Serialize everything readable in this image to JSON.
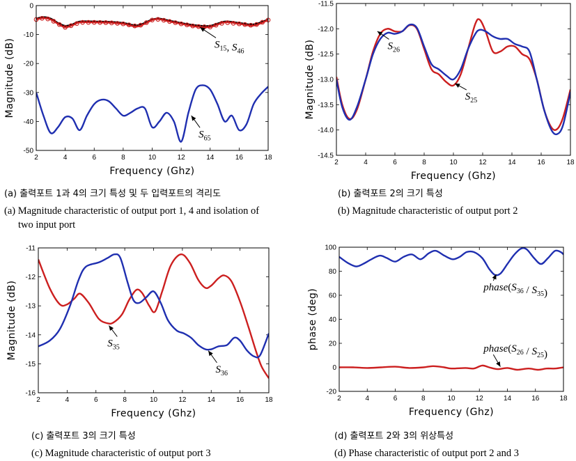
{
  "chart_data": [
    {
      "type": "line",
      "panel": "a",
      "xlabel": "Frequency (Ghz)",
      "ylabel": "Magnitude (dB)",
      "xlim": [
        2,
        18
      ],
      "ylim": [
        -50,
        0
      ],
      "xticks": [
        2,
        4,
        6,
        8,
        10,
        12,
        14,
        16,
        18
      ],
      "yticks": [
        0,
        -10,
        -20,
        -30,
        -40,
        -50
      ],
      "series": [
        {
          "name": "S15",
          "color": "#000000",
          "marker": "none",
          "x": [
            2,
            2.5,
            3,
            3.5,
            4,
            4.5,
            5,
            6,
            7,
            8,
            9,
            10,
            10.5,
            11,
            12,
            13,
            14,
            15,
            16,
            17,
            18
          ],
          "y": [
            -4.5,
            -4,
            -4.5,
            -6,
            -7,
            -6.5,
            -5.5,
            -5.5,
            -5.6,
            -6,
            -6.8,
            -4.8,
            -4.5,
            -5,
            -6,
            -6.8,
            -7,
            -5.5,
            -6,
            -6.5,
            -4.8
          ]
        },
        {
          "name": "S46",
          "color": "#cc1f1f",
          "marker": "circle",
          "x": [
            2,
            2.5,
            3,
            3.5,
            4,
            4.5,
            5,
            6,
            7,
            8,
            9,
            10,
            10.5,
            11,
            12,
            13,
            14,
            15,
            16,
            17,
            18
          ],
          "y": [
            -4.8,
            -4.3,
            -4.8,
            -6.3,
            -7.5,
            -6.8,
            -5.8,
            -5.8,
            -5.9,
            -6.3,
            -7.2,
            -5,
            -4.7,
            -5.3,
            -6.3,
            -7.2,
            -7.4,
            -5.8,
            -6.3,
            -6.9,
            -5
          ]
        },
        {
          "name": "S65",
          "color": "#1f2fb0",
          "marker": "none",
          "x": [
            2,
            2.5,
            3,
            3.5,
            4,
            4.5,
            5,
            5.5,
            6,
            6.5,
            7,
            7.5,
            8,
            8.5,
            9,
            9.5,
            10,
            10.5,
            11,
            11.5,
            12,
            12.5,
            13,
            13.5,
            14,
            14.5,
            15,
            15.5,
            16,
            16.5,
            17,
            17.5,
            18
          ],
          "y": [
            -30,
            -38,
            -44,
            -42,
            -38.5,
            -39,
            -43,
            -38,
            -34,
            -32.5,
            -33,
            -35.5,
            -38,
            -37,
            -35.5,
            -35.5,
            -42,
            -40,
            -37,
            -40,
            -47,
            -37,
            -29,
            -27.5,
            -29,
            -34,
            -40,
            -38,
            -43,
            -41,
            -34,
            -30.5,
            -28
          ]
        }
      ],
      "annotations": [
        {
          "base": "S",
          "sub": "15",
          "sep": ", ",
          "base2": "S",
          "sub2": "46",
          "x": 14.3,
          "y": -14.5,
          "arrow_to": [
            13.3,
            -7.5
          ]
        },
        {
          "base": "S",
          "sub": "65",
          "x": 13.2,
          "y": -45.5,
          "arrow_to": [
            12.7,
            -38
          ]
        }
      ]
    },
    {
      "type": "line",
      "panel": "b",
      "xlabel": "Frequency (Ghz)",
      "ylabel": "Magnitude (dB)",
      "xlim": [
        2,
        18
      ],
      "ylim": [
        -14.5,
        -11.5
      ],
      "xticks": [
        2,
        4,
        6,
        8,
        10,
        12,
        14,
        16,
        18
      ],
      "yticks": [
        "-11.5",
        "-12.0",
        "-12.5",
        "-13.0",
        "-13.5",
        "-14.0",
        "-14.5"
      ],
      "series": [
        {
          "name": "S25",
          "color": "#cc1f1f",
          "x": [
            2,
            2.4,
            2.9,
            3.4,
            4,
            4.5,
            5,
            5.5,
            6,
            6.5,
            7,
            7.5,
            8,
            8.5,
            9,
            9.5,
            10,
            10.5,
            11,
            11.5,
            11.8,
            12.2,
            12.7,
            13.2,
            13.7,
            14.2,
            14.7,
            15.2,
            15.7,
            16.2,
            16.7,
            17.1,
            17.5,
            18
          ],
          "y": [
            -12.95,
            -13.5,
            -13.78,
            -13.6,
            -13.0,
            -12.45,
            -12.1,
            -12.0,
            -12.05,
            -12.05,
            -11.93,
            -12.0,
            -12.4,
            -12.8,
            -12.9,
            -13.05,
            -13.12,
            -12.9,
            -12.4,
            -11.9,
            -11.82,
            -12.05,
            -12.45,
            -12.45,
            -12.35,
            -12.35,
            -12.5,
            -12.6,
            -13.0,
            -13.6,
            -13.95,
            -13.98,
            -13.75,
            -13.2
          ]
        },
        {
          "name": "S26",
          "color": "#1f2fb0",
          "x": [
            2,
            2.4,
            2.9,
            3.4,
            4,
            4.5,
            5,
            5.5,
            6,
            6.5,
            7,
            7.5,
            8,
            8.5,
            9,
            9.5,
            10,
            10.5,
            11,
            11.5,
            11.8,
            12.2,
            12.7,
            13.2,
            13.7,
            14.2,
            14.7,
            15.2,
            15.7,
            16.2,
            16.7,
            17.1,
            17.5,
            18
          ],
          "y": [
            -13.0,
            -13.55,
            -13.8,
            -13.55,
            -13.0,
            -12.5,
            -12.2,
            -12.08,
            -12.1,
            -12.05,
            -11.92,
            -11.98,
            -12.35,
            -12.7,
            -12.8,
            -12.92,
            -13.0,
            -12.8,
            -12.4,
            -12.1,
            -12.02,
            -12.05,
            -12.15,
            -12.2,
            -12.2,
            -12.3,
            -12.35,
            -12.45,
            -13.0,
            -13.6,
            -14.0,
            -14.08,
            -13.9,
            -13.25
          ]
        }
      ],
      "annotations": [
        {
          "base": "S",
          "sub": "26",
          "x": 5.5,
          "y": -12.4,
          "arrow_to": [
            4.8,
            -12.05
          ]
        },
        {
          "base": "S",
          "sub": "25",
          "x": 10.8,
          "y": -13.4,
          "arrow_to": [
            10.1,
            -13.08
          ]
        }
      ]
    },
    {
      "type": "line",
      "panel": "c",
      "xlabel": "Frequency (Ghz)",
      "ylabel": "Magnitude (dB)",
      "xlim": [
        2,
        18
      ],
      "ylim": [
        -16,
        -11
      ],
      "xticks": [
        2,
        4,
        6,
        8,
        10,
        12,
        14,
        16,
        18
      ],
      "yticks": [
        -11,
        -12,
        -13,
        -14,
        -15,
        -16
      ],
      "series": [
        {
          "name": "S35",
          "color": "#cc1f1f",
          "x": [
            2,
            2.8,
            3.5,
            4,
            4.5,
            4.9,
            5.5,
            6.2,
            6.8,
            7.2,
            7.8,
            8.3,
            8.8,
            9.2,
            9.7,
            10.1,
            10.6,
            11.2,
            11.9,
            12.5,
            13.1,
            13.6,
            14.0,
            14.5,
            14.9,
            15.4,
            16.0,
            16.6,
            17.1,
            17.5,
            18
          ],
          "y": [
            -11.4,
            -12.4,
            -12.95,
            -12.95,
            -12.75,
            -12.58,
            -12.9,
            -13.45,
            -13.6,
            -13.58,
            -13.3,
            -12.8,
            -12.45,
            -12.55,
            -13.0,
            -13.2,
            -12.5,
            -11.6,
            -11.22,
            -11.5,
            -12.1,
            -12.38,
            -12.3,
            -12.05,
            -11.95,
            -12.15,
            -12.85,
            -13.75,
            -14.55,
            -15.1,
            -15.5
          ]
        },
        {
          "name": "S36",
          "color": "#1f2fb0",
          "x": [
            2,
            2.8,
            3.5,
            4.2,
            4.8,
            5.3,
            6.2,
            6.8,
            7.3,
            7.7,
            8.2,
            8.6,
            9.0,
            9.5,
            10.0,
            10.5,
            11.0,
            11.6,
            12.1,
            12.6,
            13.1,
            13.6,
            14.0,
            14.5,
            15.1,
            15.6,
            16.0,
            16.5,
            17.0,
            17.4,
            18
          ],
          "y": [
            -14.4,
            -14.2,
            -13.8,
            -13.0,
            -12.1,
            -11.65,
            -11.5,
            -11.35,
            -11.22,
            -11.35,
            -12.2,
            -12.8,
            -12.9,
            -12.7,
            -12.5,
            -12.9,
            -13.5,
            -13.85,
            -13.95,
            -14.1,
            -14.35,
            -14.5,
            -14.5,
            -14.4,
            -14.35,
            -14.1,
            -14.2,
            -14.55,
            -14.75,
            -14.7,
            -13.95
          ]
        }
      ],
      "annotations": [
        {
          "base": "S",
          "sub": "35",
          "x": 6.8,
          "y": -14.4,
          "arrow_to": [
            6.9,
            -13.68
          ]
        },
        {
          "base": "S",
          "sub": "36",
          "x": 14.3,
          "y": -15.3,
          "arrow_to": [
            13.8,
            -14.55
          ]
        }
      ]
    },
    {
      "type": "line",
      "panel": "d",
      "xlabel": "Frequency (Ghz)",
      "ylabel": "phase (deg)",
      "xlim": [
        2,
        18
      ],
      "ylim": [
        -20,
        100
      ],
      "xticks": [
        2,
        4,
        6,
        8,
        10,
        12,
        14,
        16,
        18
      ],
      "yticks": [
        -20,
        0,
        20,
        40,
        60,
        80,
        100
      ],
      "series": [
        {
          "name": "phase(S36/S35)",
          "color": "#1f2fb0",
          "x": [
            2,
            2.6,
            3.2,
            3.7,
            4.3,
            4.9,
            5.4,
            6.0,
            6.6,
            7.2,
            7.8,
            8.4,
            8.9,
            9.5,
            10.1,
            10.6,
            11.1,
            11.6,
            12.2,
            12.7,
            13.1,
            13.5,
            14.0,
            14.5,
            15.0,
            15.4,
            15.9,
            16.4,
            16.9,
            17.4,
            17.8,
            18
          ],
          "y": [
            92,
            87,
            84,
            86,
            90,
            93,
            91,
            88,
            92,
            94,
            90,
            95,
            97,
            93,
            90,
            92,
            96,
            96,
            91,
            82,
            77,
            78,
            86,
            94,
            99,
            98,
            91,
            86,
            91,
            97,
            96,
            94
          ]
        },
        {
          "name": "phase(S26/S25)",
          "color": "#cc1f1f",
          "x": [
            2,
            3,
            4,
            5,
            6,
            7,
            8,
            8.7,
            9.5,
            10,
            11,
            11.6,
            12.2,
            12.7,
            13.3,
            14,
            14.7,
            15.5,
            16.2,
            16.8,
            17.4,
            18
          ],
          "y": [
            0,
            0,
            -0.5,
            0,
            0.5,
            -0.5,
            0,
            1,
            0,
            -1,
            -0.5,
            -1,
            1.5,
            0,
            -1.5,
            -0.5,
            -2,
            -1,
            -2,
            -1,
            -1,
            0
          ]
        }
      ],
      "annotations": [
        {
          "label": "phase",
          "base": "S",
          "sub": "36",
          "base2": "S",
          "sub2": "35",
          "x": 12.3,
          "y": 64,
          "arrow_to": [
            13.2,
            77.5
          ]
        },
        {
          "label": "phase",
          "base": "S",
          "sub": "26",
          "base2": "S",
          "sub2": "25",
          "x": 12.3,
          "y": 13,
          "arrow_to": [
            13.5,
            0.5
          ]
        }
      ]
    }
  ],
  "captions": {
    "a_ko": "(a) 출력포트 1과 4의 크기 특성 및 두 입력포트의 격리도",
    "a_en1": "(a) Magnitude characteristic of output port 1, 4 and isolation of",
    "a_en2": "two input port",
    "b_ko": "(b) 출력포트 2의 크기 특성",
    "b_en": "(b) Magnitude characteristic of output port 2",
    "c_ko": "(c) 출력포트 3의 크기 특성",
    "c_en": "(c) Magnitude characteristic of output port 3",
    "d_ko": "(d) 출력포트 2와 3의 위상특성",
    "d_en": "(d) Phase characteristic of output port 2 and 3"
  }
}
